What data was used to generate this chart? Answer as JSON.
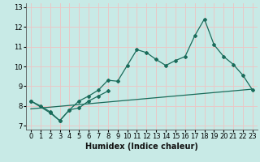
{
  "xlabel": "Humidex (Indice chaleur)",
  "background_color": "#c8eae6",
  "grid_color": "#e8c8c8",
  "line_color": "#1a6b5a",
  "xlim": [
    -0.5,
    23.5
  ],
  "ylim": [
    6.8,
    13.2
  ],
  "yticks": [
    7,
    8,
    9,
    10,
    11,
    12,
    13
  ],
  "xticks": [
    0,
    1,
    2,
    3,
    4,
    5,
    6,
    7,
    8,
    9,
    10,
    11,
    12,
    13,
    14,
    15,
    16,
    17,
    18,
    19,
    20,
    21,
    22,
    23
  ],
  "line1_x": [
    0,
    1,
    2,
    3,
    4,
    5,
    6,
    7,
    8,
    9,
    10,
    11,
    12,
    13,
    14,
    15,
    16,
    17,
    18,
    19,
    20,
    21,
    22,
    23
  ],
  "line1_y": [
    8.25,
    8.0,
    7.7,
    7.25,
    7.8,
    8.25,
    8.5,
    8.8,
    9.3,
    9.25,
    10.05,
    10.85,
    10.7,
    10.35,
    10.05,
    10.3,
    10.5,
    11.55,
    12.4,
    11.1,
    10.5,
    10.1,
    9.55,
    8.8
  ],
  "line2_x": [
    0,
    2,
    3,
    4,
    5,
    6,
    7,
    8
  ],
  "line2_y": [
    8.25,
    7.65,
    7.25,
    7.8,
    7.9,
    8.25,
    8.5,
    8.75
  ],
  "line3_x": [
    0,
    23
  ],
  "line3_y": [
    7.85,
    8.85
  ],
  "font_size_ticks": 6,
  "font_size_label": 7
}
